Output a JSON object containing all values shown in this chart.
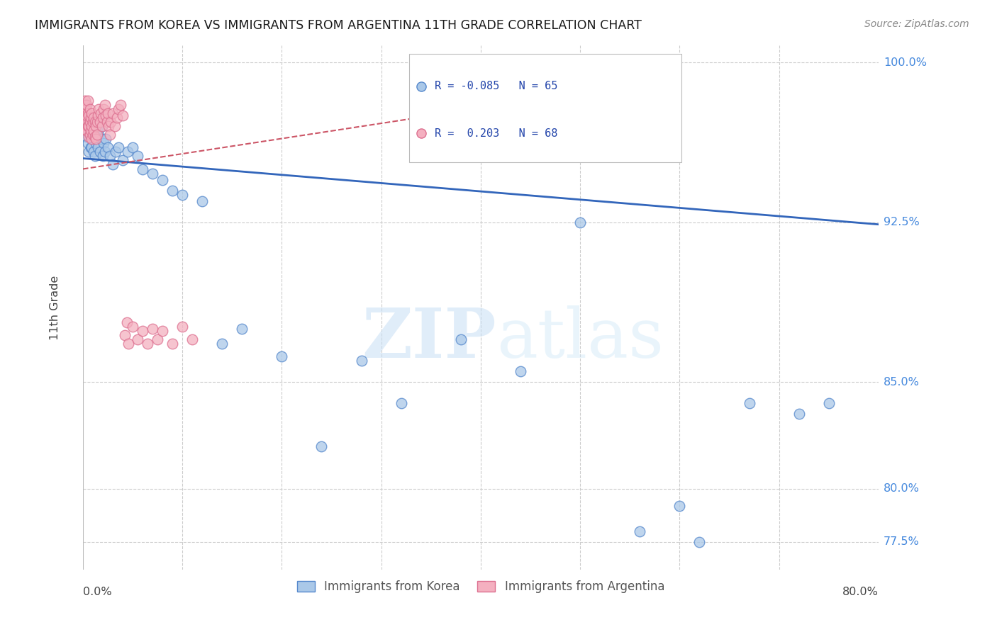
{
  "title": "IMMIGRANTS FROM KOREA VS IMMIGRANTS FROM ARGENTINA 11TH GRADE CORRELATION CHART",
  "source": "Source: ZipAtlas.com",
  "ylabel": "11th Grade",
  "korea_R": -0.085,
  "korea_N": 65,
  "argentina_R": 0.203,
  "argentina_N": 68,
  "korea_color": "#aac8e8",
  "argentina_color": "#f4b0c0",
  "korea_edge_color": "#5588cc",
  "argentina_edge_color": "#dd7090",
  "korea_line_color": "#3366bb",
  "argentina_line_color": "#cc5566",
  "watermark_zip": "ZIP",
  "watermark_atlas": "atlas",
  "x_min": 0.0,
  "x_max": 0.8,
  "y_min": 0.762,
  "y_max": 1.008,
  "y_ticks": [
    0.775,
    0.8,
    0.85,
    0.925,
    1.0
  ],
  "y_tick_labels": [
    "77.5%",
    "80.0%",
    "85.0%",
    "92.5%",
    "100.0%"
  ],
  "korea_line_x0": 0.0,
  "korea_line_y0": 0.955,
  "korea_line_x1": 0.8,
  "korea_line_y1": 0.924,
  "argentina_line_x0": 0.0,
  "argentina_line_y0": 0.95,
  "argentina_line_x1": 0.35,
  "argentina_line_y1": 0.975,
  "korea_x": [
    0.001,
    0.002,
    0.002,
    0.003,
    0.003,
    0.004,
    0.004,
    0.005,
    0.005,
    0.006,
    0.006,
    0.007,
    0.007,
    0.008,
    0.008,
    0.009,
    0.009,
    0.01,
    0.01,
    0.011,
    0.011,
    0.012,
    0.012,
    0.013,
    0.014,
    0.015,
    0.015,
    0.016,
    0.017,
    0.018,
    0.019,
    0.02,
    0.021,
    0.022,
    0.023,
    0.025,
    0.027,
    0.03,
    0.033,
    0.036,
    0.04,
    0.045,
    0.05,
    0.055,
    0.06,
    0.07,
    0.08,
    0.09,
    0.1,
    0.12,
    0.14,
    0.16,
    0.2,
    0.24,
    0.28,
    0.32,
    0.38,
    0.44,
    0.5,
    0.56,
    0.62,
    0.67,
    0.72,
    0.75,
    0.6
  ],
  "korea_y": [
    0.975,
    0.972,
    0.98,
    0.968,
    0.976,
    0.97,
    0.965,
    0.975,
    0.962,
    0.97,
    0.958,
    0.972,
    0.966,
    0.96,
    0.968,
    0.974,
    0.96,
    0.966,
    0.972,
    0.958,
    0.964,
    0.97,
    0.956,
    0.962,
    0.968,
    0.974,
    0.96,
    0.966,
    0.958,
    0.964,
    0.97,
    0.956,
    0.962,
    0.958,
    0.964,
    0.96,
    0.956,
    0.952,
    0.958,
    0.96,
    0.954,
    0.958,
    0.96,
    0.956,
    0.95,
    0.948,
    0.945,
    0.94,
    0.938,
    0.935,
    0.868,
    0.875,
    0.862,
    0.82,
    0.86,
    0.84,
    0.87,
    0.855,
    0.925,
    0.78,
    0.775,
    0.84,
    0.835,
    0.84,
    0.792
  ],
  "argentina_x": [
    0.001,
    0.001,
    0.002,
    0.002,
    0.002,
    0.003,
    0.003,
    0.003,
    0.004,
    0.004,
    0.004,
    0.005,
    0.005,
    0.005,
    0.006,
    0.006,
    0.006,
    0.007,
    0.007,
    0.007,
    0.008,
    0.008,
    0.009,
    0.009,
    0.009,
    0.01,
    0.01,
    0.011,
    0.011,
    0.012,
    0.012,
    0.013,
    0.013,
    0.014,
    0.014,
    0.015,
    0.016,
    0.017,
    0.018,
    0.019,
    0.02,
    0.021,
    0.022,
    0.023,
    0.024,
    0.025,
    0.026,
    0.027,
    0.028,
    0.03,
    0.032,
    0.034,
    0.036,
    0.038,
    0.04,
    0.042,
    0.044,
    0.046,
    0.05,
    0.055,
    0.06,
    0.065,
    0.07,
    0.075,
    0.08,
    0.09,
    0.1,
    0.11
  ],
  "argentina_y": [
    0.98,
    0.975,
    0.982,
    0.976,
    0.97,
    0.978,
    0.973,
    0.968,
    0.98,
    0.975,
    0.968,
    0.982,
    0.976,
    0.97,
    0.975,
    0.97,
    0.965,
    0.978,
    0.972,
    0.966,
    0.974,
    0.968,
    0.976,
    0.97,
    0.964,
    0.972,
    0.966,
    0.974,
    0.968,
    0.972,
    0.965,
    0.97,
    0.964,
    0.972,
    0.966,
    0.975,
    0.978,
    0.972,
    0.976,
    0.97,
    0.974,
    0.978,
    0.98,
    0.975,
    0.972,
    0.976,
    0.97,
    0.966,
    0.972,
    0.976,
    0.97,
    0.974,
    0.978,
    0.98,
    0.975,
    0.872,
    0.878,
    0.868,
    0.876,
    0.87,
    0.874,
    0.868,
    0.875,
    0.87,
    0.874,
    0.868,
    0.876,
    0.87
  ]
}
